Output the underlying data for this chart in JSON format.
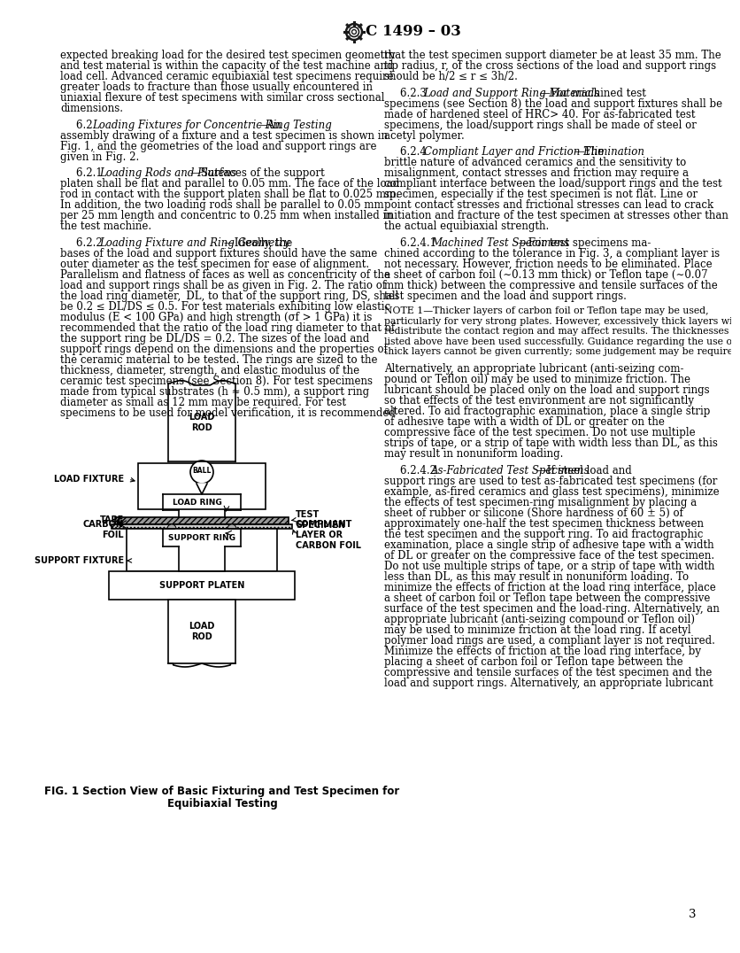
{
  "title": "C 1499 – 03",
  "page_number": "3",
  "fig_caption_line1": "FIG. 1 Section View of Basic Fixturing and Test Specimen for",
  "fig_caption_line2": "Equibiaxial Testing",
  "background_color": "#ffffff",
  "text_color": "#000000",
  "left_col_segments": [
    {
      "text": "expected breaking load for the desired test specimen geometry and test material is within the capacity of the test machine and load cell. Advanced ceramic equibiaxial test specimens require greater loads to fracture than those usually encountered in uniaxial flexure of test specimens with similar cross sectional dimensions.",
      "indent": false,
      "parts": [
        {
          "t": "expected breaking load for the desired test specimen geometry and test material is within the capacity of the test machine and load cell. Advanced ceramic equibiaxial test specimens require greater loads to fracture than those usually encountered in uniaxial flexure of test specimens with similar cross sectional dimensions.",
          "style": "normal"
        }
      ]
    },
    {
      "text": "",
      "indent": false,
      "parts": []
    },
    {
      "text": "6.2 Loading Fixtures for Concentric Ring Testing—An assembly drawing of a fixture and a test specimen is shown in Fig. 1, and the geometries of the load and support rings are given in Fig. 2.",
      "indent": true,
      "parts": [
        {
          "t": "6.2 ",
          "style": "normal"
        },
        {
          "t": "Loading Fixtures for Concentric Ring Testing",
          "style": "italic"
        },
        {
          "t": "—An assembly drawing of a fixture and a test specimen is shown in Fig. 1, and the geometries of the load and support rings are given in Fig. 2.",
          "style": "normal"
        }
      ]
    },
    {
      "text": "",
      "indent": false,
      "parts": []
    },
    {
      "text": "6.2.1 Loading Rods and Platens—Surfaces...",
      "indent": true,
      "parts": [
        {
          "t": "6.2.1 ",
          "style": "normal"
        },
        {
          "t": "Loading Rods and Platens",
          "style": "italic"
        },
        {
          "t": "—Surfaces of the support platen shall be flat and parallel to 0.05 mm. The face of the load rod in contact with the support platen shall be flat to 0.025 mm. In addition, the two loading rods shall be parallel to 0.05 mm per 25 mm length and concentric to 0.25 mm when installed in the test machine.",
          "style": "normal"
        }
      ]
    },
    {
      "text": "",
      "indent": false,
      "parts": []
    },
    {
      "text": "6.2.2 para",
      "indent": true,
      "parts": [
        {
          "t": "6.2.2 ",
          "style": "normal"
        },
        {
          "t": "Loading Fixture and Ring Geometry",
          "style": "italic"
        },
        {
          "t": "—Ideally, the bases of the load and support fixtures should have the same outer diameter as the test specimen for ease of alignment. Parallelism and flatness of faces as well as concentricity of the load and support rings shall be as given in Fig. 2. The ratio of the load ring diameter, ",
          "style": "normal"
        },
        {
          "t": "D",
          "style": "italic"
        },
        {
          "t": "₂ to that of the support ring, ",
          "style": "normal"
        },
        {
          "t": "D",
          "style": "italic"
        },
        {
          "t": "ₛ shall be 0.2 ≤ D₂/Dₛ ≤ 0.5. For test materials exhibiting low elastic modulus (",
          "style": "normal"
        },
        {
          "t": "E",
          "style": "italic"
        },
        {
          "t": " < 100 GPa) and high strength (σ",
          "style": "normal"
        },
        {
          "t": "f",
          "style": "italic"
        },
        {
          "t": "> 1 GPa) it is recommended that the ratio of the load ring diameter to that of the support ring be D₂/Dₛ = 0.2. The sizes of the load and support rings depend on the dimensions and the properties of the ceramic material to be tested. The rings are sized to the thickness, diameter, strength, and elastic modulus of the ceramic test specimens (see Section 8). For test specimens made from typical substrates (",
          "style": "normal"
        },
        {
          "t": "h",
          "style": "italic"
        },
        {
          "t": " ≈ 0.5 mm), a support ring diameter as small as 12 mm may be required. For test specimens to be used for model verification, it is recommended",
          "style": "normal"
        }
      ]
    }
  ],
  "right_col_segments": [
    {
      "parts": [
        {
          "t": "that the test specimen support diameter be at least 35 mm. The tip radius, ",
          "style": "normal"
        },
        {
          "t": "r",
          "style": "italic"
        },
        {
          "t": ", of the cross sections of the load and support rings should be ",
          "style": "normal"
        },
        {
          "t": "h",
          "style": "italic"
        },
        {
          "t": "/2 ≤ ",
          "style": "normal"
        },
        {
          "t": "r",
          "style": "italic"
        },
        {
          "t": " ≤ 3",
          "style": "normal"
        },
        {
          "t": "h",
          "style": "italic"
        },
        {
          "t": "/2.",
          "style": "normal"
        }
      ],
      "indent": false
    },
    {
      "parts": [],
      "indent": false
    },
    {
      "parts": [
        {
          "t": "6.2.3 ",
          "style": "normal"
        },
        {
          "t": "Load and Support Ring Materials",
          "style": "italic"
        },
        {
          "t": "—For machined test specimens (see Section 8) the load and support fixtures shall be made of hardened steel of HR",
          "style": "normal"
        },
        {
          "t": "C",
          "style": "sub"
        },
        {
          "t": "> 40. For as-fabricated test specimens, the load/support rings shall be made of steel or acetyl polymer.",
          "style": "normal"
        }
      ],
      "indent": true
    },
    {
      "parts": [],
      "indent": false
    },
    {
      "parts": [
        {
          "t": "6.2.4 ",
          "style": "normal"
        },
        {
          "t": "Compliant Layer and Friction Elimination",
          "style": "italic"
        },
        {
          "t": "—The brittle nature of advanced ceramics and the sensitivity to misalignment, contact stresses and friction may require a compliant interface between the load/support rings and the test specimen, especially if the test specimen is not flat. Line or point contact stresses and frictional stresses can lead to crack initiation and fracture of the test specimen at stresses other than the actual equibiaxial strength.",
          "style": "normal"
        }
      ],
      "indent": true
    },
    {
      "parts": [],
      "indent": false
    },
    {
      "parts": [
        {
          "t": "6.2.4.1 ",
          "style": "normal"
        },
        {
          "t": "Machined Test Specimens",
          "style": "italic"
        },
        {
          "t": "—For test specimens machined according to the tolerance in Fig. 3, a compliant layer is not necessary. However, friction needs to be eliminated. Place a sheet of carbon foil (∼0.13 mm thick) or Teflon tape (∼0.07 mm thick) between the compressive and tensile surfaces of the test specimen and the load and support rings.",
          "style": "normal"
        }
      ],
      "indent": true
    },
    {
      "parts": [],
      "indent": false
    },
    {
      "parts": [
        {
          "t": "NOTE 1—Thicker layers of carbon foil or Teflon tape may be used, particularly for very strong plates. However, excessively thick layers will redistribute the contact region and may affect results. The thicknesses listed above have been used successfully. Guidance regarding the use of thick layers cannot be given currently; some judgement may be required.",
          "style": "note"
        }
      ],
      "indent": false
    },
    {
      "parts": [],
      "indent": false
    },
    {
      "parts": [
        {
          "t": "Alternatively, an appropriate lubricant (anti-seizing compound or Teflon oil) may be used to minimize friction. The lubricant should be placed only on the load and support rings so that effects of the test environment are not significantly altered. To aid fractographic examination, place a single strip of adhesive tape with a width of ",
          "style": "normal"
        },
        {
          "t": "D",
          "style": "italic"
        },
        {
          "t": "₂ or greater on the compressive face of the test specimen. Do not use multiple strips of tape, or a strip of tape with width less than ",
          "style": "normal"
        },
        {
          "t": "D",
          "style": "italic"
        },
        {
          "t": "₂, as this may result in nonuniform loading.",
          "style": "normal"
        }
      ],
      "indent": false
    },
    {
      "parts": [],
      "indent": false
    },
    {
      "parts": [
        {
          "t": "6.2.4.2 ",
          "style": "normal"
        },
        {
          "t": "As-Fabricated Test Specimens",
          "style": "italic"
        },
        {
          "t": "—If steel load and support rings are used to test as-fabricated test specimens (for example, as-fired ceramics and glass test specimens), minimize the effects of test specimen-ring misalignment by placing a sheet of rubber or silicone (Shore hardness of 60 ± 5) of approximately one-half the test specimen thickness between the test specimen and the support ring. To aid fractographic examination, place a single strip of adhesive tape with a width of ",
          "style": "normal"
        },
        {
          "t": "D",
          "style": "italic"
        },
        {
          "t": "₂ or greater on the compressive face of the test specimen. Do not use multiple strips of tape, or a strip of tape with width less than ",
          "style": "normal"
        },
        {
          "t": "D",
          "style": "italic"
        },
        {
          "t": "₂, as this may result in nonuniform loading. To minimize the effects of friction at the load ring interface, place a sheet of carbon foil or Teflon tape between the compressive surface of the test specimen and the load-ring. Alternatively, an appropriate lubricant (anti-seizing compound or Teflon oil) may be used to minimize friction at the load ring. If acetyl polymer load rings are used, a compliant layer is not required. Minimize the effects of friction at the load ring interface, by placing a sheet of carbon foil or Teflon tape between the compressive and tensile surfaces of the test specimen and the load and support rings. Alternatively, an appropriate lubricant",
          "style": "normal"
        }
      ],
      "indent": true
    }
  ]
}
